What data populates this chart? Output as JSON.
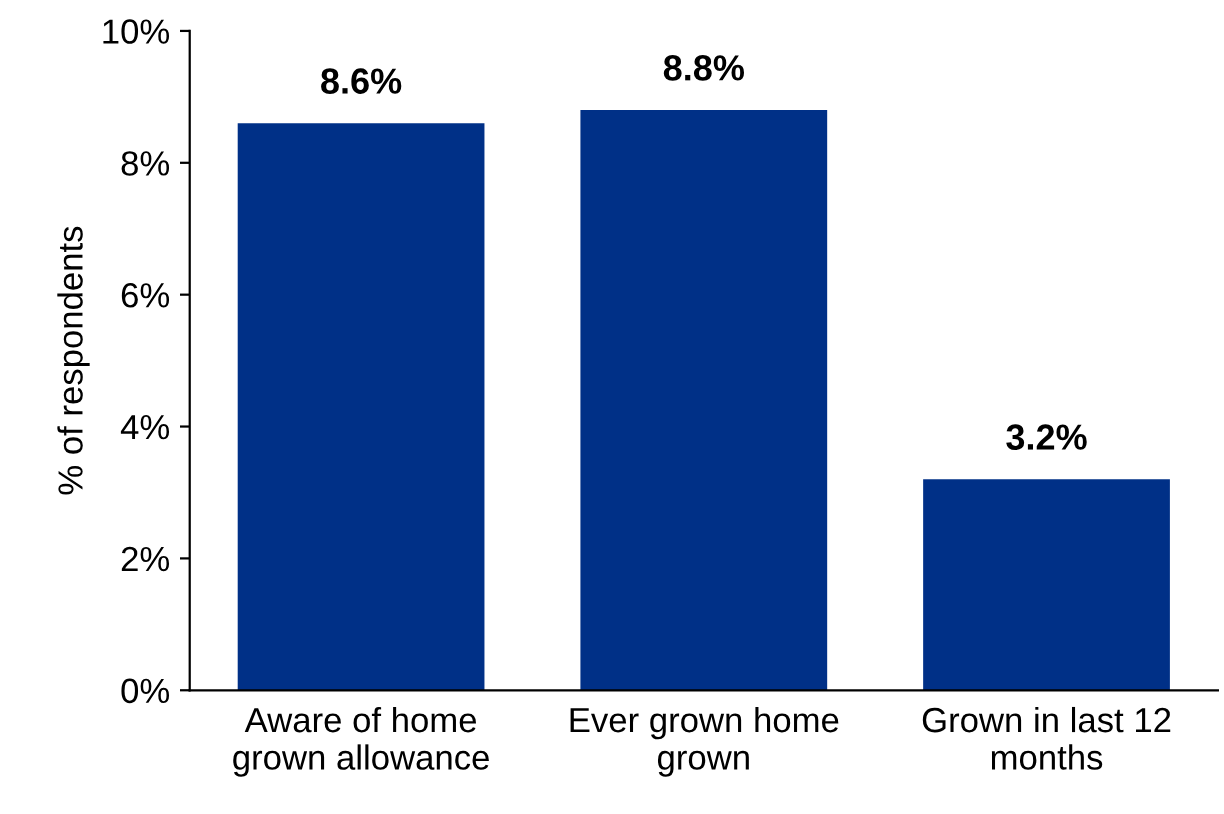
{
  "chart_data": {
    "type": "bar",
    "ylabel": "% of respondents",
    "categories": [
      "Aware of home\ngrown allowance",
      "Ever grown home\ngrown",
      "Grown in last 12\nmonths"
    ],
    "values": [
      8.6,
      8.8,
      3.2
    ],
    "value_labels": [
      "8.6%",
      "8.8%",
      "3.2%"
    ],
    "color": "#003087",
    "ylim": [
      0,
      10
    ],
    "yticks": [
      {
        "value": 0,
        "label": "0%"
      },
      {
        "value": 2,
        "label": "2%"
      },
      {
        "value": 4,
        "label": "4%"
      },
      {
        "value": 6,
        "label": "6%"
      },
      {
        "value": 8,
        "label": "8%"
      },
      {
        "value": 10,
        "label": "10%"
      }
    ],
    "grid": false,
    "legend": false
  }
}
